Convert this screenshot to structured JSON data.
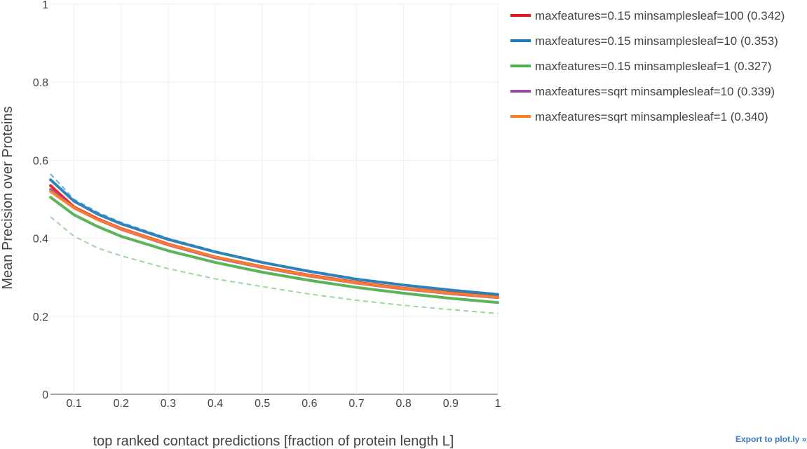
{
  "chart_data": {
    "type": "line",
    "title": "",
    "xlabel": "top ranked contact predictions [fraction of protein length L]",
    "ylabel": "Mean Precision over Proteins",
    "xlim": [
      0.05,
      1.0
    ],
    "ylim": [
      0,
      1.0
    ],
    "xticks": [
      0.1,
      0.2,
      0.3,
      0.4,
      0.5,
      0.6,
      0.7,
      0.8,
      0.9,
      1
    ],
    "yticks": [
      0,
      0.2,
      0.4,
      0.6,
      0.8,
      1
    ],
    "grid": true,
    "legend_position": "top-right",
    "x": [
      0.05,
      0.1,
      0.15,
      0.2,
      0.3,
      0.4,
      0.5,
      0.6,
      0.7,
      0.8,
      0.9,
      1.0
    ],
    "series": [
      {
        "name": "maxfeatures=0.15 minsamplesleaf=100 (0.342)",
        "color": "#e41a1c",
        "values": [
          0.535,
          0.48,
          0.45,
          0.425,
          0.385,
          0.352,
          0.327,
          0.305,
          0.287,
          0.272,
          0.26,
          0.25
        ]
      },
      {
        "name": "maxfeatures=0.15 minsamplesleaf=10 (0.353)",
        "color": "#1f78b4",
        "values": [
          0.55,
          0.495,
          0.462,
          0.437,
          0.397,
          0.365,
          0.338,
          0.315,
          0.295,
          0.28,
          0.267,
          0.256
        ]
      },
      {
        "name": "maxfeatures=0.15 minsamplesleaf=1 (0.327)",
        "color": "#4daf4a",
        "values": [
          0.505,
          0.46,
          0.43,
          0.405,
          0.368,
          0.338,
          0.313,
          0.292,
          0.274,
          0.259,
          0.246,
          0.235
        ]
      },
      {
        "name": "maxfeatures=sqrt minsamplesleaf=10 (0.339)",
        "color": "#984ea3",
        "values": [
          0.525,
          0.478,
          0.448,
          0.423,
          0.383,
          0.35,
          0.325,
          0.303,
          0.285,
          0.27,
          0.258,
          0.248
        ]
      },
      {
        "name": "maxfeatures=sqrt minsamplesleaf=1 (0.340)",
        "color": "#ff7f27",
        "values": [
          0.52,
          0.478,
          0.448,
          0.424,
          0.384,
          0.352,
          0.326,
          0.304,
          0.286,
          0.271,
          0.259,
          0.249
        ]
      }
    ],
    "reference_lines": [
      {
        "color": "#6baed6",
        "values": [
          0.565,
          0.5,
          0.467,
          0.441,
          0.4,
          0.367,
          0.339,
          0.317,
          0.297,
          0.281,
          0.268,
          0.257
        ]
      },
      {
        "color": "#9fd69c",
        "values": [
          0.455,
          0.405,
          0.375,
          0.355,
          0.322,
          0.296,
          0.276,
          0.257,
          0.241,
          0.228,
          0.217,
          0.207
        ]
      }
    ]
  },
  "export_link": "Export to plot.ly »"
}
